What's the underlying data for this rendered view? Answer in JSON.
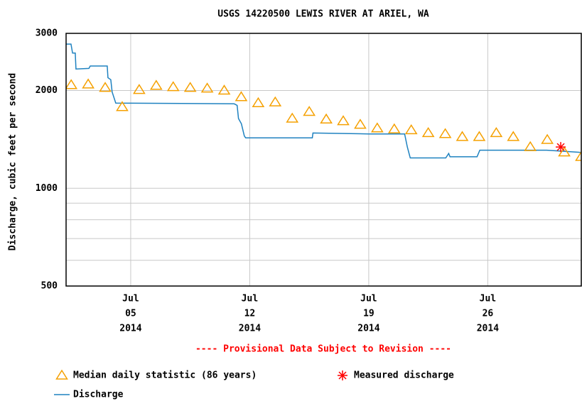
{
  "chart_data": {
    "type": "line",
    "title": "USGS 14220500 LEWIS RIVER AT ARIEL, WA",
    "ylabel": "Discharge, cubic feet per second",
    "note": "---- Provisional Data Subject to Revision ----",
    "log_y": true,
    "grid": true,
    "xlim": [
      1.2,
      31.5
    ],
    "ylim": [
      500,
      3000
    ],
    "yticks": [
      500,
      1000,
      2000,
      3000
    ],
    "minor_yticks": [
      600,
      700,
      800,
      900
    ],
    "xticks": [
      {
        "value": 5,
        "label": [
          "Jul",
          "05",
          "2014"
        ]
      },
      {
        "value": 12,
        "label": [
          "Jul",
          "12",
          "2014"
        ]
      },
      {
        "value": 19,
        "label": [
          "Jul",
          "19",
          "2014"
        ]
      },
      {
        "value": 26,
        "label": [
          "Jul",
          "26",
          "2014"
        ]
      }
    ],
    "series": [
      {
        "name": "Median daily statistic (86 years)",
        "color": "#f5a000",
        "marker": "triangle",
        "x": [
          1.5,
          2.5,
          3.5,
          4.5,
          5.5,
          6.5,
          7.5,
          8.5,
          9.5,
          10.5,
          11.5,
          12.5,
          13.5,
          14.5,
          15.5,
          16.5,
          17.5,
          18.5,
          19.5,
          20.5,
          21.5,
          22.5,
          23.5,
          24.5,
          25.5,
          26.5,
          27.5,
          28.5,
          29.5,
          30.5,
          31.5
        ],
        "values": [
          2080,
          2090,
          2040,
          1780,
          2010,
          2070,
          2050,
          2040,
          2030,
          2000,
          1910,
          1830,
          1840,
          1640,
          1720,
          1630,
          1610,
          1570,
          1530,
          1520,
          1510,
          1480,
          1470,
          1440,
          1440,
          1480,
          1440,
          1340,
          1410,
          1290,
          1250
        ]
      },
      {
        "name": "Measured discharge",
        "color": "#ff0000",
        "marker": "asterisk",
        "x": [
          30.29
        ],
        "values": [
          1340
        ]
      },
      {
        "name": "Discharge",
        "color": "#1f82c0",
        "marker": "line",
        "x": [
          1.2,
          1.49,
          1.58,
          1.74,
          1.78,
          2.54,
          2.62,
          3.62,
          3.66,
          3.83,
          3.91,
          4.12,
          11.09,
          11.26,
          11.34,
          11.51,
          11.68,
          11.76,
          12.55,
          15.68,
          15.72,
          19.02,
          21.11,
          21.27,
          21.44,
          23.53,
          23.7,
          23.78,
          25.37,
          25.53,
          29.46,
          31.5
        ],
        "values": [
          2780,
          2780,
          2610,
          2610,
          2330,
          2340,
          2380,
          2380,
          2190,
          2160,
          1980,
          1830,
          1820,
          1800,
          1640,
          1580,
          1450,
          1430,
          1430,
          1430,
          1480,
          1470,
          1470,
          1340,
          1240,
          1240,
          1280,
          1250,
          1250,
          1310,
          1310,
          1290
        ]
      }
    ]
  }
}
